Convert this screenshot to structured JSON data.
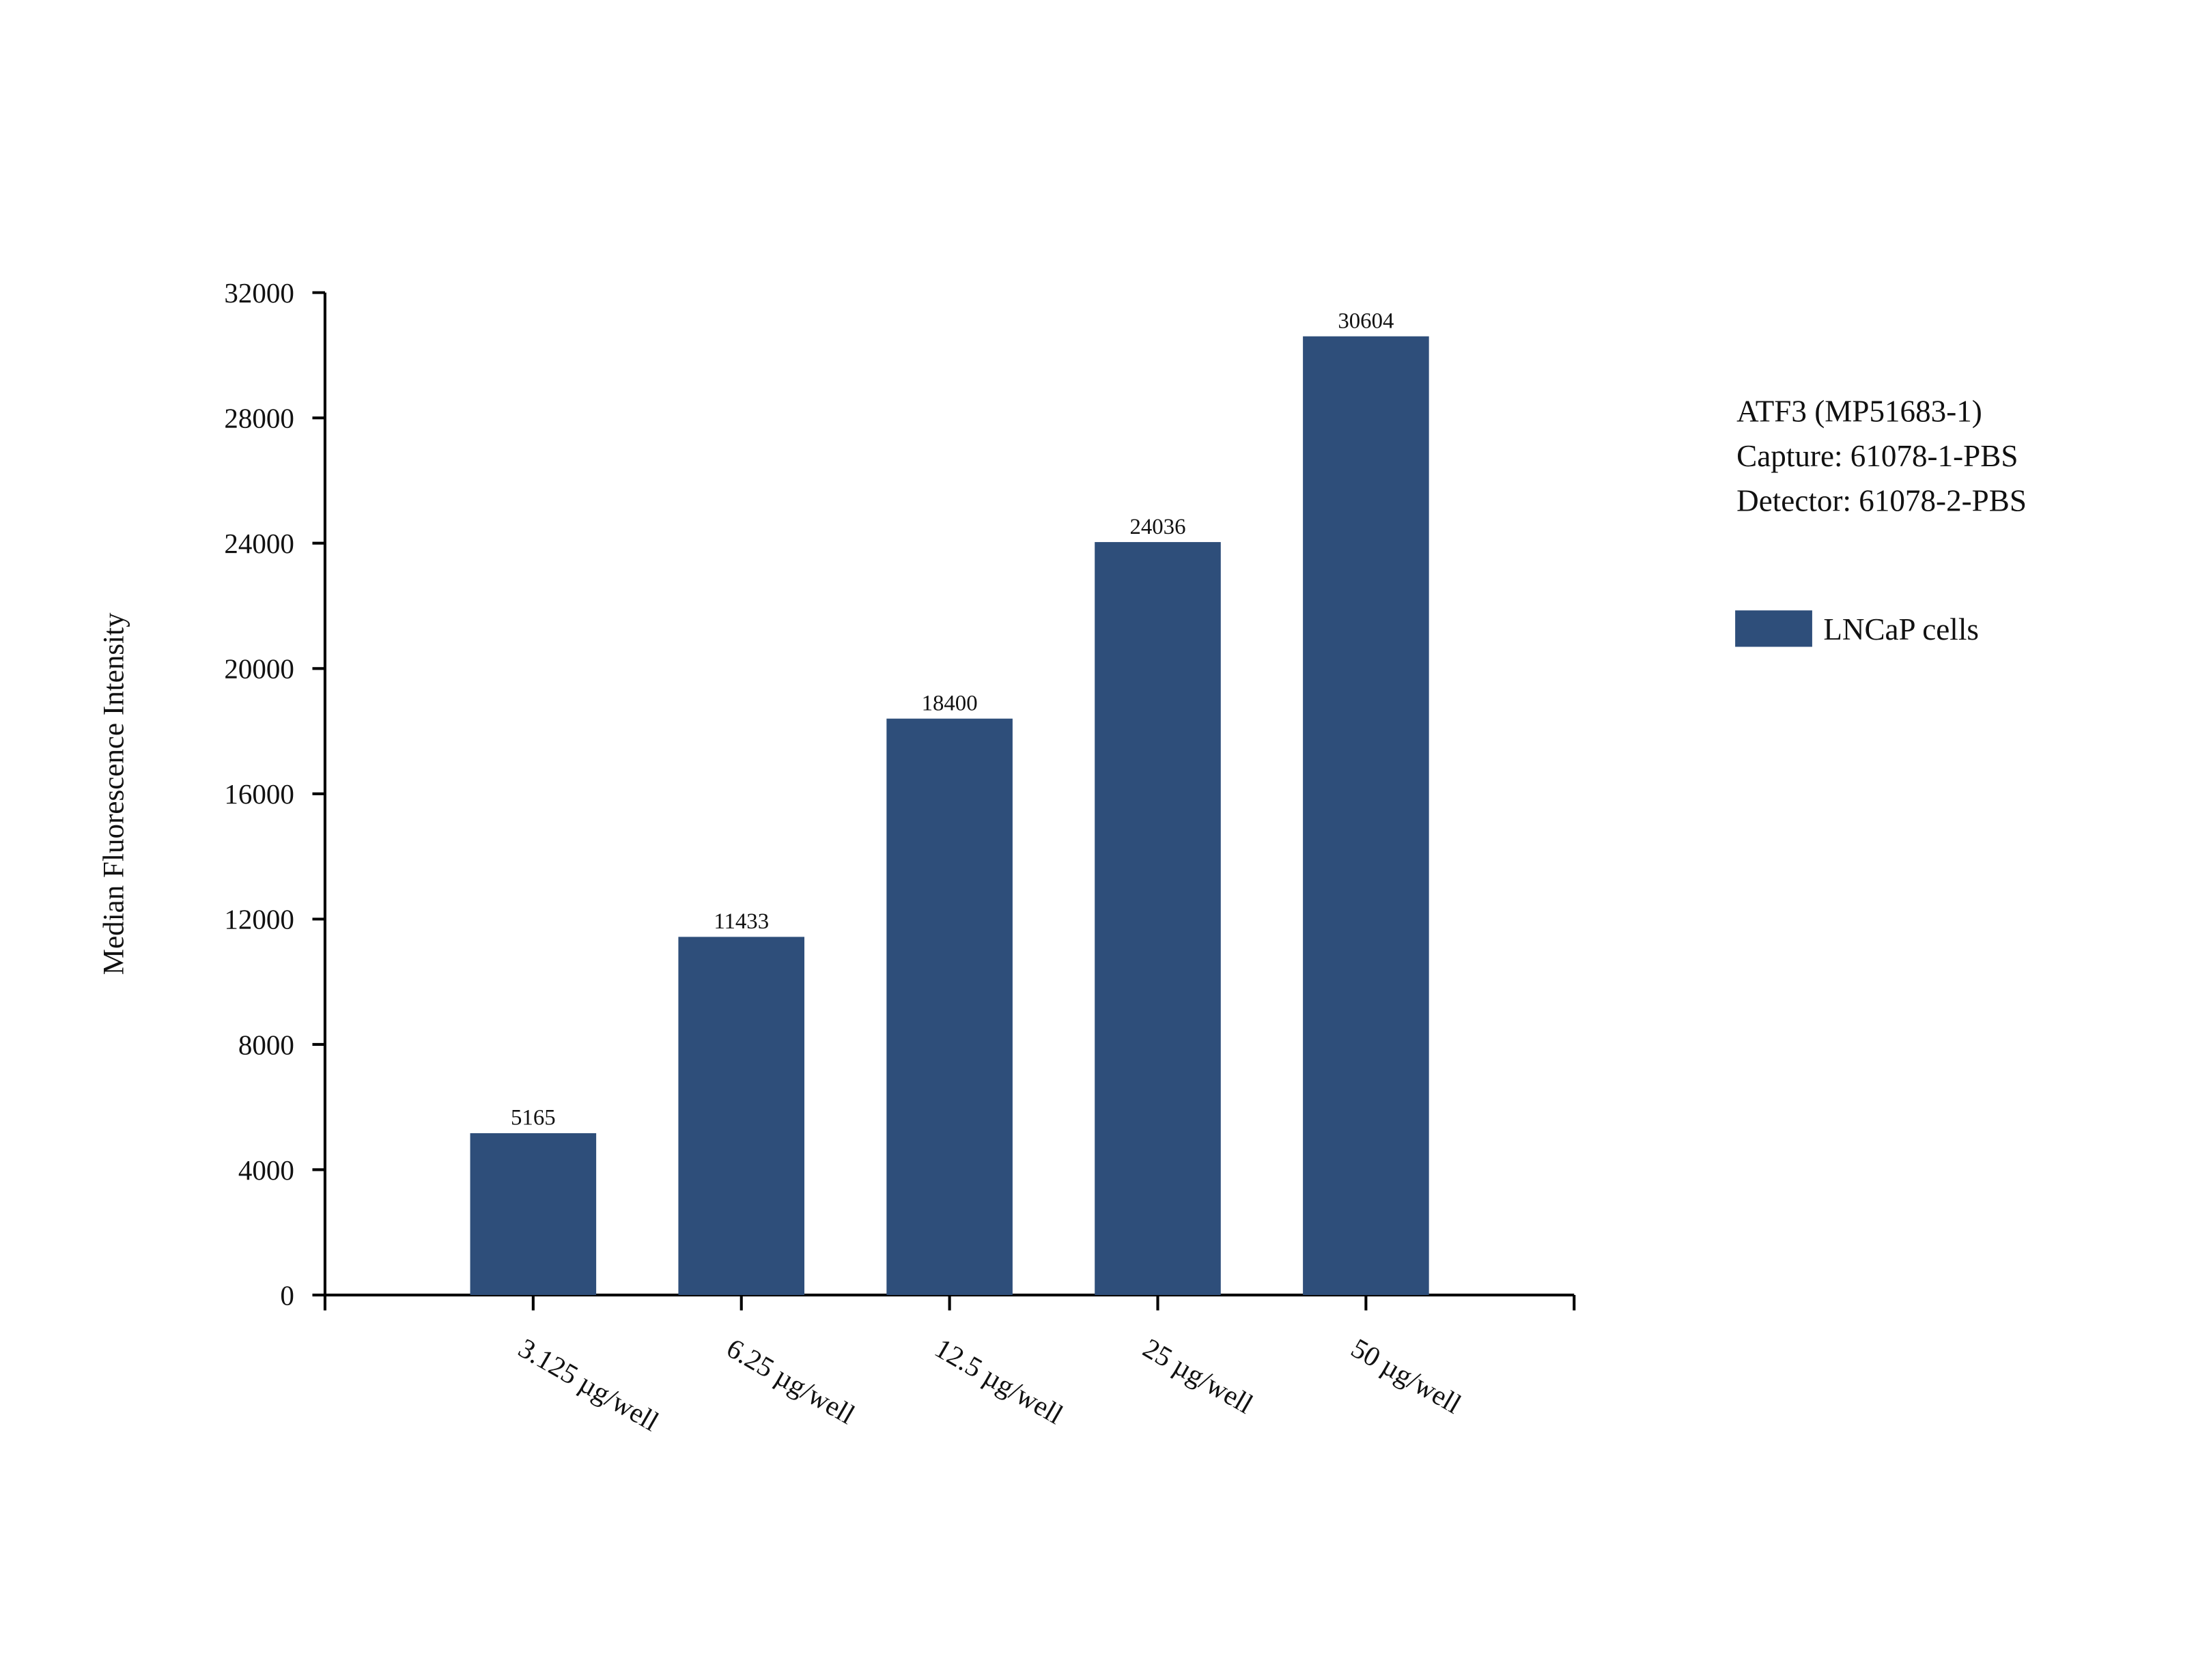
{
  "chart_data": {
    "type": "bar",
    "y_label": "Median Fluorescence Intensity",
    "annotations": [
      "ATF3 (MP51683-1)",
      "Capture: 61078-1-PBS",
      "Detector: 61078-2-PBS"
    ],
    "categories": [
      "3.125 µg/well",
      "6.25 µg/well",
      "12.5 µg/well",
      "25 µg/well",
      "50 µg/well"
    ],
    "series": [
      {
        "name": "LNCaP cells",
        "color": "#2e4e7a",
        "values": [
          5165,
          11433,
          18400,
          24036,
          30604
        ]
      }
    ],
    "ylim": [
      0,
      32000
    ],
    "yticks": [
      0,
      4000,
      8000,
      12000,
      16000,
      20000,
      24000,
      28000,
      32000
    ],
    "grid": false,
    "value_labels_shown": true
  }
}
